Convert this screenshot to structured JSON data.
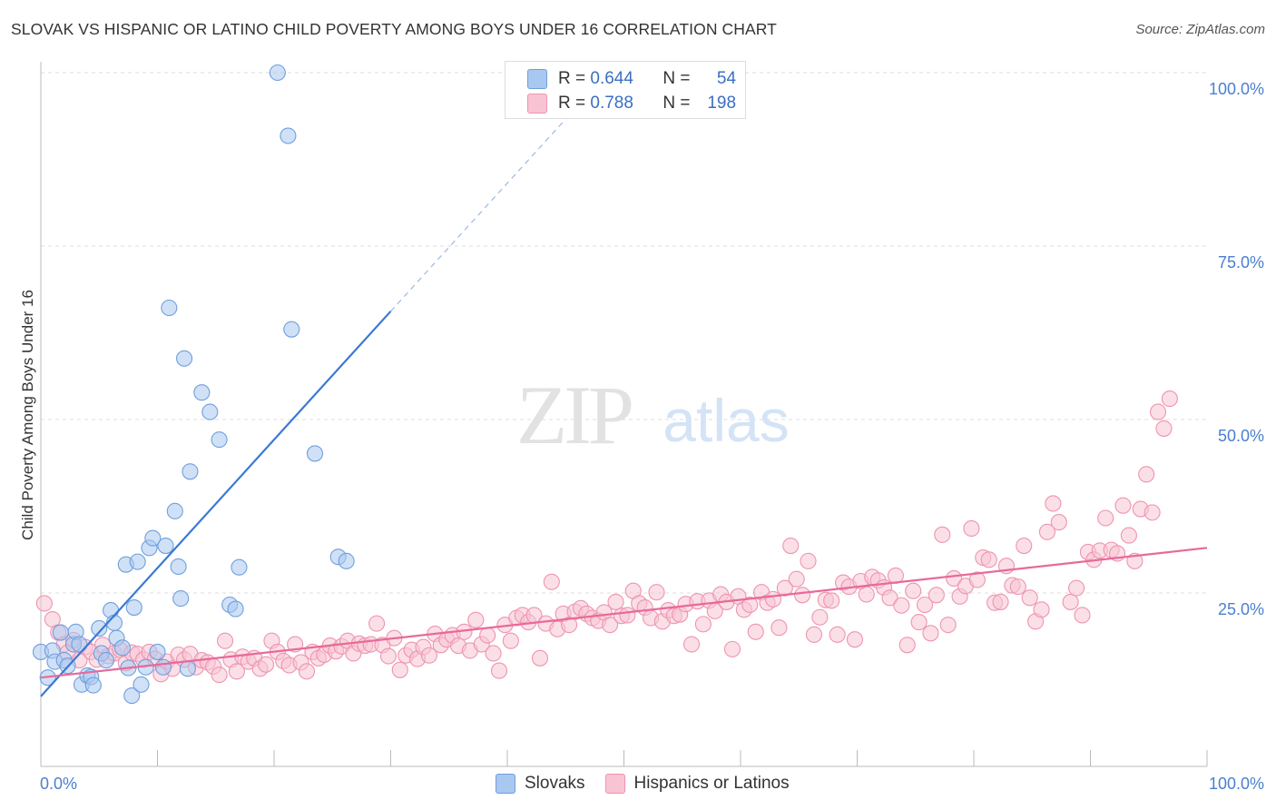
{
  "title": "SLOVAK VS HISPANIC OR LATINO CHILD POVERTY AMONG BOYS UNDER 16 CORRELATION CHART",
  "source": "Source: ZipAtlas.com",
  "watermark": {
    "zip": "ZIP",
    "atlas": "atlas"
  },
  "legend": {
    "r_label": "R =",
    "n_label": "N =",
    "rows": [
      {
        "r": "0.644",
        "n": "54",
        "color": "#a9c8f0",
        "border": "#6f9fdc"
      },
      {
        "r": "0.788",
        "n": "198",
        "color": "#f8c4d4",
        "border": "#ee94b0"
      }
    ]
  },
  "bottom_legend": [
    {
      "label": "Slovaks",
      "color": "#a9c8f0",
      "border": "#6f9fdc"
    },
    {
      "label": "Hispanics or Latinos",
      "color": "#f8c4d4",
      "border": "#ee94b0"
    }
  ],
  "chart_data": {
    "type": "scatter",
    "xlabel": "",
    "ylabel": "Child Poverty Among Boys Under 16",
    "xlim": [
      0,
      100
    ],
    "ylim": [
      0,
      100
    ],
    "x_tick_labels": [
      "0.0%",
      "100.0%"
    ],
    "y_tick_labels": [
      "100.0%",
      "75.0%",
      "50.0%",
      "25.0%"
    ],
    "y_tick_values": [
      100,
      75,
      50,
      25
    ],
    "grid": "horizontal dashed",
    "colors": {
      "blue": "#3a79d4",
      "pink": "#e8699a",
      "label": "#4a7fd0"
    },
    "series": [
      {
        "name": "Slovaks",
        "color": "#a9c8f0",
        "stroke": "#6f9fdc",
        "trend": {
          "x0": 0,
          "y0": 10.1,
          "x1": 30,
          "y1": 65.6,
          "dash_to_x": 45,
          "dash_to_y": 93.3
        },
        "points": [
          [
            0,
            16.5
          ],
          [
            0.6,
            12.8
          ],
          [
            1,
            16.7
          ],
          [
            1.2,
            15.1
          ],
          [
            1.7,
            19.3
          ],
          [
            2,
            15.3
          ],
          [
            2.3,
            14.5
          ],
          [
            2.8,
            17.6
          ],
          [
            3,
            19.4
          ],
          [
            3.3,
            17.6
          ],
          [
            3.5,
            11.8
          ],
          [
            4,
            13.1
          ],
          [
            4.3,
            12.9
          ],
          [
            4.5,
            11.7
          ],
          [
            5,
            19.9
          ],
          [
            5.2,
            16.3
          ],
          [
            5.6,
            15.3
          ],
          [
            6,
            22.5
          ],
          [
            6.3,
            20.7
          ],
          [
            6.5,
            18.5
          ],
          [
            7,
            17.1
          ],
          [
            7.3,
            29.1
          ],
          [
            7.5,
            14.2
          ],
          [
            7.8,
            10.2
          ],
          [
            8,
            22.9
          ],
          [
            8.3,
            29.5
          ],
          [
            8.6,
            11.8
          ],
          [
            9,
            14.3
          ],
          [
            9.3,
            31.5
          ],
          [
            9.6,
            32.9
          ],
          [
            10,
            16.5
          ],
          [
            10.5,
            14.3
          ],
          [
            10.7,
            31.8
          ],
          [
            11,
            66.1
          ],
          [
            11.5,
            36.8
          ],
          [
            11.8,
            28.8
          ],
          [
            12,
            24.2
          ],
          [
            12.3,
            58.8
          ],
          [
            12.8,
            42.5
          ],
          [
            12.6,
            14.1
          ],
          [
            13.8,
            53.9
          ],
          [
            14.5,
            51.1
          ],
          [
            15.3,
            47.1
          ],
          [
            16.2,
            23.3
          ],
          [
            16.7,
            22.7
          ],
          [
            17,
            28.7
          ],
          [
            20.3,
            100
          ],
          [
            21.2,
            90.9
          ],
          [
            21.5,
            63
          ],
          [
            23.5,
            45.1
          ],
          [
            25.5,
            30.2
          ],
          [
            26.2,
            29.6
          ]
        ]
      },
      {
        "name": "Hispanics or Latinos",
        "color": "#f8c4d4",
        "stroke": "#ee94b0",
        "trend": {
          "x0": 0,
          "y0": 12.8,
          "x1": 100,
          "y1": 31.5
        },
        "points": [
          [
            0.3,
            23.5
          ],
          [
            1,
            21.2
          ],
          [
            1.5,
            19.3
          ],
          [
            2,
            17.6
          ],
          [
            2.3,
            16.4
          ],
          [
            2.8,
            18.2
          ],
          [
            3.3,
            15.3
          ],
          [
            3.8,
            17.2
          ],
          [
            4.3,
            16.5
          ],
          [
            4.8,
            15.4
          ],
          [
            5.3,
            17.5
          ],
          [
            5.8,
            15.9
          ],
          [
            6.3,
            16.3
          ],
          [
            6.8,
            16.8
          ],
          [
            7.3,
            14.9
          ],
          [
            7.8,
            16.4
          ],
          [
            8.3,
            16.2
          ],
          [
            8.8,
            15.4
          ],
          [
            9.3,
            16.5
          ],
          [
            9.8,
            15.5
          ],
          [
            10.3,
            13.3
          ],
          [
            10.8,
            15.1
          ],
          [
            11.3,
            14.1
          ],
          [
            11.8,
            16.1
          ],
          [
            12.3,
            15.4
          ],
          [
            12.8,
            16.2
          ],
          [
            13.3,
            14.3
          ],
          [
            13.8,
            15.3
          ],
          [
            14.3,
            15
          ],
          [
            14.8,
            14.4
          ],
          [
            15.3,
            13.2
          ],
          [
            15.8,
            18.1
          ],
          [
            16.3,
            15.4
          ],
          [
            16.8,
            13.7
          ],
          [
            17.3,
            15.8
          ],
          [
            17.8,
            15.1
          ],
          [
            18.3,
            15.6
          ],
          [
            18.8,
            14.1
          ],
          [
            19.3,
            14.7
          ],
          [
            19.8,
            18.1
          ],
          [
            20.3,
            16.5
          ],
          [
            20.8,
            15.2
          ],
          [
            21.3,
            14.6
          ],
          [
            21.8,
            17.6
          ],
          [
            22.3,
            15
          ],
          [
            22.8,
            13.7
          ],
          [
            23.3,
            16.5
          ],
          [
            23.8,
            15.6
          ],
          [
            24.3,
            16.1
          ],
          [
            24.8,
            17.4
          ],
          [
            25.3,
            16.6
          ],
          [
            25.8,
            17.3
          ],
          [
            26.3,
            18.1
          ],
          [
            26.8,
            16.3
          ],
          [
            27.3,
            17.7
          ],
          [
            27.8,
            17.4
          ],
          [
            28.3,
            17.6
          ],
          [
            28.8,
            20.6
          ],
          [
            29.3,
            17.5
          ],
          [
            29.8,
            15.9
          ],
          [
            30.3,
            18.5
          ],
          [
            30.8,
            13.9
          ],
          [
            31.3,
            16
          ],
          [
            31.8,
            16.8
          ],
          [
            32.3,
            15.5
          ],
          [
            32.8,
            17.2
          ],
          [
            33.3,
            16
          ],
          [
            33.8,
            19.1
          ],
          [
            34.3,
            17.5
          ],
          [
            34.8,
            18.3
          ],
          [
            35.3,
            18.9
          ],
          [
            35.8,
            17.4
          ],
          [
            36.3,
            19.4
          ],
          [
            36.8,
            16.7
          ],
          [
            37.3,
            21.1
          ],
          [
            37.8,
            17.6
          ],
          [
            38.3,
            18.9
          ],
          [
            38.8,
            16.3
          ],
          [
            39.3,
            13.8
          ],
          [
            39.8,
            20.4
          ],
          [
            40.3,
            18.1
          ],
          [
            40.8,
            21.4
          ],
          [
            41.3,
            21.8
          ],
          [
            41.8,
            20.8
          ],
          [
            42.3,
            21.8
          ],
          [
            42.8,
            15.6
          ],
          [
            43.3,
            20.6
          ],
          [
            43.8,
            26.6
          ],
          [
            44.3,
            19.8
          ],
          [
            44.8,
            22
          ],
          [
            45.3,
            20.4
          ],
          [
            45.8,
            22.3
          ],
          [
            46.3,
            22.8
          ],
          [
            46.8,
            22
          ],
          [
            47.3,
            21.4
          ],
          [
            47.8,
            21
          ],
          [
            48.3,
            22.2
          ],
          [
            48.8,
            20.4
          ],
          [
            49.3,
            23.7
          ],
          [
            49.8,
            21.7
          ],
          [
            50.3,
            21.8
          ],
          [
            50.8,
            25.3
          ],
          [
            51.3,
            23.5
          ],
          [
            51.8,
            22.9
          ],
          [
            52.3,
            21.4
          ],
          [
            52.8,
            25.1
          ],
          [
            53.3,
            20.9
          ],
          [
            53.8,
            22.5
          ],
          [
            54.3,
            21.7
          ],
          [
            54.8,
            21.9
          ],
          [
            55.3,
            23.4
          ],
          [
            55.8,
            17.6
          ],
          [
            56.3,
            23.8
          ],
          [
            56.8,
            20.5
          ],
          [
            57.3,
            23.9
          ],
          [
            57.8,
            22.4
          ],
          [
            58.3,
            24.8
          ],
          [
            58.8,
            23.7
          ],
          [
            59.3,
            16.9
          ],
          [
            59.8,
            24.5
          ],
          [
            60.3,
            22.6
          ],
          [
            60.8,
            23.3
          ],
          [
            61.3,
            19.4
          ],
          [
            61.8,
            25.1
          ],
          [
            62.3,
            23.6
          ],
          [
            62.8,
            24.1
          ],
          [
            63.3,
            20
          ],
          [
            63.8,
            25.7
          ],
          [
            64.3,
            31.8
          ],
          [
            64.8,
            27
          ],
          [
            65.3,
            24.7
          ],
          [
            65.8,
            29.6
          ],
          [
            66.3,
            19
          ],
          [
            66.8,
            21.5
          ],
          [
            67.3,
            24
          ],
          [
            67.8,
            23.9
          ],
          [
            68.3,
            19
          ],
          [
            68.8,
            26.5
          ],
          [
            69.3,
            25.9
          ],
          [
            69.8,
            18.3
          ],
          [
            70.3,
            26.7
          ],
          [
            70.8,
            24.8
          ],
          [
            71.3,
            27.3
          ],
          [
            71.8,
            26.8
          ],
          [
            72.3,
            25.8
          ],
          [
            72.8,
            24.3
          ],
          [
            73.3,
            27.5
          ],
          [
            73.8,
            23.2
          ],
          [
            74.3,
            17.5
          ],
          [
            74.8,
            25.3
          ],
          [
            75.3,
            20.8
          ],
          [
            75.8,
            23.3
          ],
          [
            76.3,
            19.2
          ],
          [
            76.8,
            24.7
          ],
          [
            77.3,
            33.4
          ],
          [
            77.8,
            20.4
          ],
          [
            78.3,
            27.1
          ],
          [
            78.8,
            24.5
          ],
          [
            79.3,
            26
          ],
          [
            79.8,
            34.3
          ],
          [
            80.3,
            26.9
          ],
          [
            80.8,
            30.1
          ],
          [
            81.3,
            29.8
          ],
          [
            81.8,
            23.6
          ],
          [
            82.3,
            23.7
          ],
          [
            82.8,
            28.9
          ],
          [
            83.3,
            26.1
          ],
          [
            83.8,
            25.9
          ],
          [
            84.3,
            31.8
          ],
          [
            84.8,
            24.3
          ],
          [
            85.3,
            20.9
          ],
          [
            85.8,
            22.6
          ],
          [
            86.3,
            33.8
          ],
          [
            86.8,
            37.9
          ],
          [
            87.3,
            35.2
          ],
          [
            88.3,
            23.7
          ],
          [
            88.8,
            25.7
          ],
          [
            89.3,
            21.8
          ],
          [
            89.8,
            30.9
          ],
          [
            90.3,
            29.8
          ],
          [
            90.8,
            31.1
          ],
          [
            91.3,
            35.8
          ],
          [
            91.8,
            31.2
          ],
          [
            92.3,
            30.7
          ],
          [
            92.8,
            37.6
          ],
          [
            93.3,
            33.3
          ],
          [
            93.8,
            29.6
          ],
          [
            94.3,
            37.1
          ],
          [
            94.8,
            42.1
          ],
          [
            95.3,
            36.6
          ],
          [
            95.8,
            51.1
          ],
          [
            96.3,
            48.7
          ],
          [
            96.8,
            53
          ]
        ]
      }
    ]
  }
}
